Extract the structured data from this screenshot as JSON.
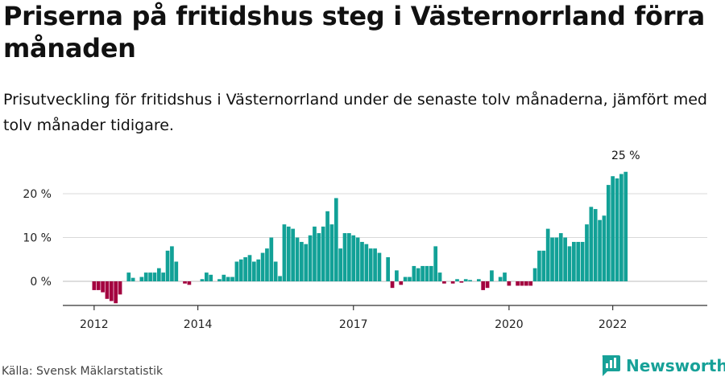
{
  "header": {
    "title": "Priserna på fritidshus steg i Västernorrland förra månaden",
    "subtitle": "Prisutveckling för fritidshus i Västernorrland under de senaste tolv månaderna, jämfört med tolv månader tidigare."
  },
  "footer": {
    "source": "Källa: Svensk Mäklarstatistik",
    "brand": "Newsworthy"
  },
  "colors": {
    "positive": "#12a197",
    "negative": "#a3003f",
    "gridline": "#d9d9d9",
    "axis": "#333333",
    "brand": "#17a198"
  },
  "chart_data": {
    "type": "bar",
    "start_month": "2012-01",
    "x_tick_labels": [
      "2012",
      "2014",
      "2017",
      "2020",
      "2022"
    ],
    "x_tick_months": [
      "2012-01",
      "2014-01",
      "2017-01",
      "2020-01",
      "2022-01"
    ],
    "y_ticks": [
      0,
      10,
      20
    ],
    "y_tick_labels": [
      "0 %",
      "10 %",
      "20 %"
    ],
    "ylim": [
      -5,
      25
    ],
    "grid": true,
    "last_value_label": "25 %",
    "values": [
      -2,
      -2,
      -2.5,
      -4,
      -4.5,
      -5,
      -3,
      0,
      2,
      0.8,
      0,
      1,
      2,
      2,
      2,
      3,
      2,
      7,
      8,
      4.5,
      0,
      -0.5,
      -0.8,
      0,
      0,
      0.5,
      2,
      1.5,
      0,
      0.5,
      1.5,
      1,
      1,
      4.5,
      5,
      5.5,
      6,
      4.5,
      5,
      6.5,
      7.5,
      10,
      4.5,
      1.2,
      13,
      12.5,
      12,
      10,
      9,
      8.5,
      10.5,
      12.5,
      11,
      12.5,
      16,
      13,
      19,
      7.5,
      11,
      11,
      10.5,
      10,
      9,
      8.5,
      7.5,
      7.5,
      6.5,
      0,
      5.5,
      -1.5,
      2.5,
      -0.8,
      1,
      1,
      3.5,
      3,
      3.5,
      3.5,
      3.5,
      8,
      2,
      -0.5,
      0,
      -0.5,
      0.5,
      -0.3,
      0.5,
      0.3,
      0,
      0.5,
      -2,
      -1.5,
      2.5,
      0,
      1,
      2,
      -1,
      0,
      -1,
      -1,
      -1,
      -1,
      3,
      7,
      7,
      12,
      10,
      10,
      11,
      10,
      8,
      9,
      9,
      9,
      13,
      17,
      16.5,
      14,
      15,
      22,
      24,
      23.5,
      24.5,
      25
    ]
  }
}
